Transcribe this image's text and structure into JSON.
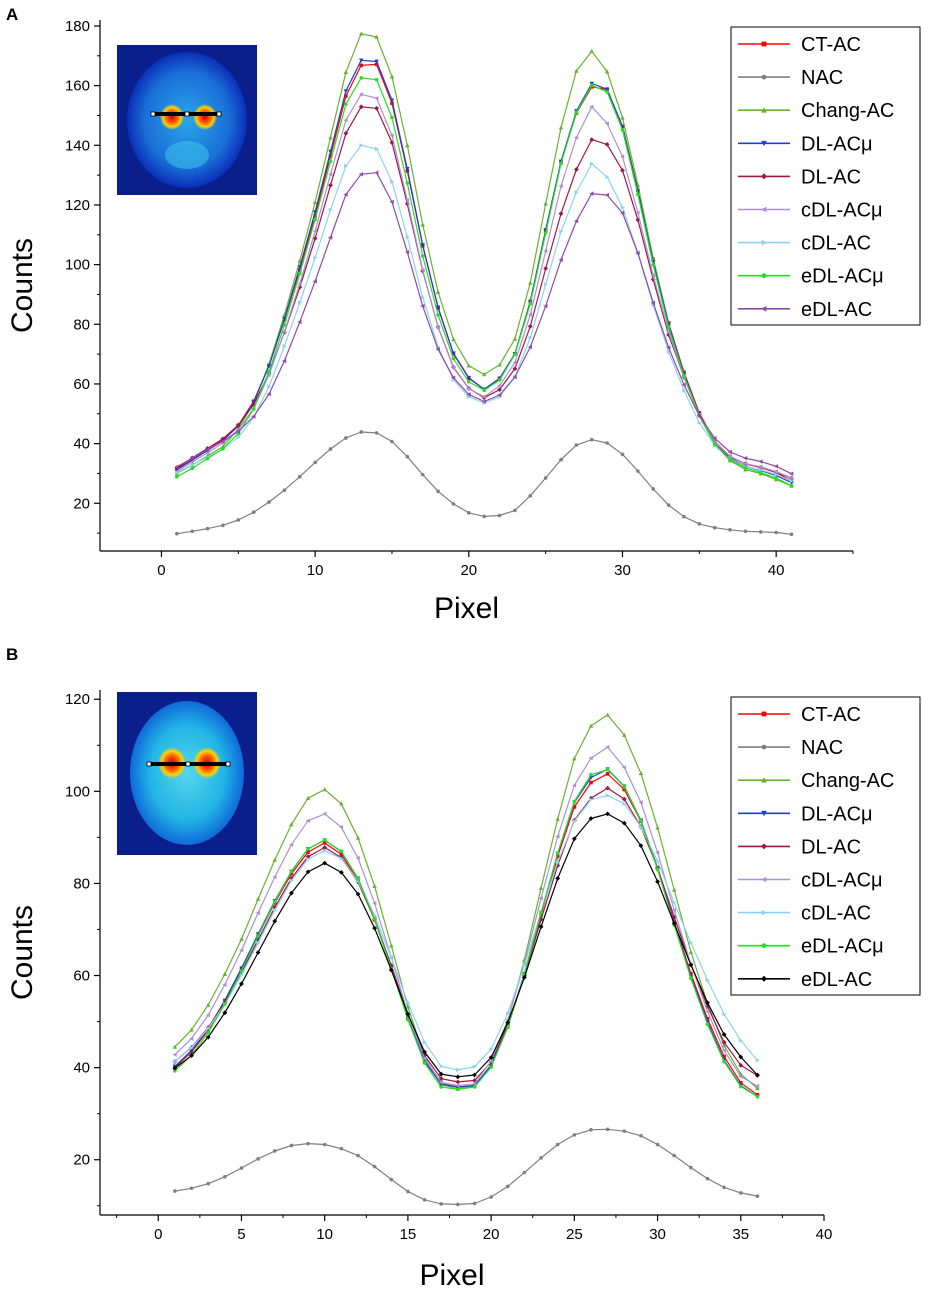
{
  "chart_data": [
    {
      "panel": "A",
      "type": "line",
      "xlabel": "Pixel",
      "ylabel": "Counts",
      "xlim": [
        -4,
        45
      ],
      "ylim": [
        4,
        182
      ],
      "xticks": [
        "0",
        "10",
        "20",
        "30",
        "40"
      ],
      "yticks": [
        "20",
        "40",
        "60",
        "80",
        "100",
        "120",
        "140",
        "160",
        "180"
      ],
      "legend_position": "top-right",
      "inset": "axial brain PET slice with horizontal line profile",
      "x": [
        1,
        2,
        3,
        4,
        5,
        6,
        7,
        8,
        9,
        10,
        11,
        12,
        13,
        14,
        15,
        16,
        17,
        18,
        19,
        20,
        21,
        22,
        23,
        24,
        25,
        26,
        27,
        28,
        29,
        30,
        31,
        32,
        33,
        34,
        35,
        36,
        37,
        38,
        39,
        40,
        41
      ],
      "series": [
        {
          "name": "CT-AC",
          "color": "#ff0000",
          "marker": "square",
          "values": [
            31.5,
            34.6,
            37.9,
            41.2,
            46.1,
            54.2,
            66.2,
            81.5,
            98.3,
            116.3,
            136.4,
            156.5,
            166.8,
            167.1,
            154.1,
            131.4,
            106.3,
            85.5,
            70.1,
            61.9,
            58.2,
            61.9,
            70.1,
            87.7,
            111.6,
            134.3,
            150.8,
            159.6,
            158.7,
            146.4,
            125.0,
            101.8,
            80.5,
            63.9,
            50.3,
            40.7,
            35.7,
            33.2,
            32.0,
            30.3,
            27.5
          ]
        },
        {
          "name": "NAC",
          "color": "#7f7f7f",
          "marker": "circle",
          "values": [
            9.8,
            10.6,
            11.5,
            12.6,
            14.4,
            17.0,
            20.4,
            24.4,
            28.9,
            33.7,
            38.2,
            41.9,
            43.9,
            43.6,
            40.7,
            35.6,
            29.6,
            24.0,
            19.8,
            16.8,
            15.6,
            15.9,
            17.6,
            22.5,
            28.5,
            34.6,
            39.5,
            41.3,
            40.2,
            36.4,
            30.8,
            24.8,
            19.4,
            15.5,
            13.1,
            11.8,
            11.1,
            10.6,
            10.4,
            10.2,
            9.6
          ]
        },
        {
          "name": "Chang-AC",
          "color": "#66b32e",
          "marker": "triangle-up",
          "values": [
            30.0,
            32.8,
            35.9,
            39.0,
            45.0,
            53.6,
            66.7,
            83.1,
            101.3,
            120.9,
            142.6,
            164.5,
            177.4,
            176.3,
            163.0,
            140.0,
            113.4,
            90.8,
            75.0,
            66.1,
            63.2,
            66.4,
            75.1,
            93.9,
            120.4,
            145.9,
            164.9,
            171.5,
            164.7,
            149.2,
            126.7,
            102.1,
            80.3,
            63.2,
            49.3,
            39.7,
            34.3,
            31.3,
            29.9,
            28.0,
            25.8
          ]
        },
        {
          "name": "DL-ACμ",
          "color": "#1b3fd6",
          "marker": "triangle-down",
          "values": [
            31.2,
            34.4,
            37.7,
            41.0,
            45.9,
            53.9,
            66.0,
            81.8,
            99.2,
            117.6,
            137.9,
            158.2,
            168.5,
            168.1,
            155.1,
            132.1,
            106.6,
            85.7,
            70.3,
            62.1,
            58.2,
            61.8,
            70.1,
            87.5,
            111.6,
            134.6,
            151.5,
            160.7,
            158.8,
            146.2,
            124.5,
            100.9,
            79.9,
            63.2,
            49.9,
            40.3,
            35.1,
            32.4,
            31.0,
            29.3,
            26.9
          ]
        },
        {
          "name": "DL-AC",
          "color": "#9e1747",
          "marker": "diamond",
          "values": [
            31.8,
            35.2,
            38.4,
            41.6,
            46.2,
            53.1,
            63.6,
            77.3,
            92.4,
            108.8,
            126.6,
            144.0,
            152.9,
            152.4,
            140.9,
            120.4,
            97.9,
            79.1,
            65.6,
            58.5,
            55.4,
            58.1,
            65.1,
            79.3,
            98.7,
            117.1,
            131.9,
            141.9,
            140.3,
            131.6,
            115.0,
            95.0,
            76.5,
            62.3,
            49.6,
            40.4,
            35.5,
            33.3,
            32.0,
            30.4,
            28.4
          ]
        },
        {
          "name": "cDL-ACμ",
          "color": "#b08fd4",
          "marker": "triangle-left",
          "values": [
            30.6,
            33.8,
            36.9,
            40.2,
            44.7,
            51.8,
            63.0,
            77.5,
            93.6,
            111.2,
            130.3,
            148.4,
            157.1,
            155.8,
            143.3,
            121.6,
            98.2,
            79.0,
            65.4,
            58.4,
            55.7,
            59.4,
            67.2,
            83.2,
            104.6,
            126.3,
            142.6,
            152.9,
            147.3,
            136.2,
            117.4,
            96.4,
            77.5,
            62.3,
            49.6,
            40.5,
            35.7,
            33.3,
            32.2,
            30.6,
            28.5
          ]
        },
        {
          "name": "cDL-AC",
          "color": "#8dd1f5",
          "marker": "triangle-right",
          "values": [
            30.2,
            32.9,
            35.5,
            38.1,
            42.1,
            48.8,
            59.1,
            72.7,
            87.3,
            102.3,
            118.4,
            133.1,
            140.0,
            138.8,
            127.8,
            109.3,
            89.0,
            72.4,
            61.4,
            55.7,
            53.6,
            55.7,
            62.4,
            75.5,
            93.4,
            111.1,
            124.2,
            133.8,
            129.4,
            119.2,
            103.8,
            86.5,
            70.8,
            57.8,
            47.0,
            39.4,
            34.8,
            32.3,
            31.2,
            29.6,
            27.5
          ]
        },
        {
          "name": "eDL-ACμ",
          "color": "#22e022",
          "marker": "circle",
          "values": [
            28.9,
            31.7,
            35.0,
            38.3,
            43.4,
            51.6,
            64.1,
            79.8,
            97.0,
            115.1,
            134.6,
            153.8,
            162.6,
            162.0,
            149.3,
            127.3,
            102.9,
            83.1,
            68.5,
            60.7,
            57.9,
            61.3,
            69.9,
            86.9,
            110.6,
            133.9,
            151.0,
            160.1,
            157.9,
            145.2,
            123.5,
            99.9,
            79.0,
            62.6,
            49.5,
            39.9,
            34.6,
            31.9,
            30.3,
            28.4,
            25.9
          ]
        },
        {
          "name": "eDL-AC",
          "color": "#8c4ca8",
          "marker": "triangle-left",
          "values": [
            32.2,
            35.1,
            38.0,
            40.8,
            44.1,
            49.1,
            56.6,
            67.7,
            80.8,
            94.4,
            109.1,
            123.5,
            130.3,
            130.8,
            121.0,
            104.2,
            86.1,
            71.6,
            62.1,
            56.5,
            54.1,
            56.3,
            62.3,
            72.4,
            86.1,
            101.6,
            114.6,
            123.8,
            123.3,
            117.3,
            103.9,
            87.2,
            72.2,
            59.7,
            49.3,
            41.8,
            37.2,
            35.1,
            34.0,
            32.4,
            29.9
          ]
        }
      ]
    },
    {
      "panel": "B",
      "type": "line",
      "xlabel": "Pixel",
      "ylabel": "Counts",
      "xlim": [
        -3.5,
        40
      ],
      "ylim": [
        8,
        122
      ],
      "xticks": [
        "0",
        "5",
        "10",
        "15",
        "20",
        "25",
        "30",
        "35",
        "40"
      ],
      "yticks": [
        "20",
        "40",
        "60",
        "80",
        "100",
        "120"
      ],
      "legend_position": "top-right",
      "inset": "axial brain PET slice with horizontal line profile",
      "x": [
        1,
        2,
        3,
        4,
        5,
        6,
        7,
        8,
        9,
        10,
        11,
        12,
        13,
        14,
        15,
        16,
        17,
        18,
        19,
        20,
        21,
        22,
        23,
        24,
        25,
        26,
        27,
        28,
        29,
        30,
        31,
        32,
        33,
        34,
        35,
        36
      ],
      "series": [
        {
          "name": "CT-AC",
          "color": "#ff0000",
          "marker": "square",
          "values": [
            40.0,
            43.4,
            48.1,
            54.2,
            61.2,
            68.6,
            75.8,
            82.1,
            86.8,
            88.8,
            86.3,
            80.7,
            72.1,
            61.6,
            50.6,
            41.4,
            36.5,
            35.8,
            36.1,
            40.4,
            48.8,
            60.1,
            73.2,
            85.9,
            96.6,
            101.9,
            103.8,
            100.4,
            93.5,
            83.4,
            71.6,
            60.4,
            50.6,
            42.4,
            36.7,
            34.1
          ]
        },
        {
          "name": "NAC",
          "color": "#7f7f7f",
          "marker": "circle",
          "values": [
            13.2,
            13.8,
            14.8,
            16.3,
            18.2,
            20.2,
            21.9,
            23.1,
            23.5,
            23.3,
            22.4,
            20.9,
            18.5,
            15.7,
            13.1,
            11.3,
            10.4,
            10.3,
            10.5,
            11.9,
            14.2,
            17.2,
            20.4,
            23.3,
            25.4,
            26.5,
            26.6,
            26.2,
            25.2,
            23.3,
            20.9,
            18.3,
            15.9,
            14.0,
            12.8,
            12.1
          ]
        },
        {
          "name": "Chang-AC",
          "color": "#66b32e",
          "marker": "triangle-up",
          "values": [
            44.5,
            48.2,
            53.6,
            60.3,
            67.9,
            76.6,
            85.1,
            92.8,
            98.5,
            100.4,
            97.3,
            89.9,
            79.4,
            66.5,
            53.2,
            42.3,
            36.3,
            35.4,
            36.0,
            40.6,
            50.1,
            63.4,
            79.0,
            94.0,
            107.1,
            114.2,
            116.6,
            112.2,
            103.9,
            92.1,
            78.6,
            65.1,
            53.9,
            44.8,
            38.6,
            35.5
          ]
        },
        {
          "name": "DL-ACμ",
          "color": "#1b3fd6",
          "marker": "triangle-down",
          "values": [
            40.3,
            43.7,
            48.5,
            54.6,
            61.6,
            69.0,
            76.2,
            82.6,
            87.5,
            89.4,
            86.9,
            81.1,
            72.4,
            61.8,
            50.7,
            41.5,
            36.4,
            35.8,
            36.1,
            40.5,
            49.0,
            60.4,
            73.6,
            86.5,
            97.6,
            103.0,
            104.8,
            101.1,
            93.7,
            83.3,
            71.3,
            59.8,
            49.9,
            41.6,
            36.1,
            33.7
          ]
        },
        {
          "name": "DL-AC",
          "color": "#9e1747",
          "marker": "diamond",
          "values": [
            41.3,
            44.4,
            48.7,
            54.2,
            60.7,
            67.7,
            74.8,
            81.1,
            85.8,
            87.8,
            85.6,
            80.3,
            72.2,
            62.2,
            51.6,
            42.6,
            37.6,
            36.9,
            37.2,
            41.2,
            49.3,
            60.1,
            72.2,
            83.9,
            93.7,
            98.5,
            100.7,
            98.3,
            92.3,
            83.3,
            72.7,
            62.4,
            53.3,
            45.5,
            40.5,
            38.3
          ]
        },
        {
          "name": "cDL-ACμ",
          "color": "#b08fd4",
          "marker": "triangle-left",
          "values": [
            42.8,
            46.3,
            51.4,
            58.0,
            65.5,
            73.6,
            81.4,
            88.4,
            93.6,
            95.1,
            92.2,
            85.5,
            75.7,
            63.9,
            51.8,
            42.0,
            36.8,
            36.1,
            36.5,
            41.4,
            50.4,
            62.6,
            76.8,
            90.2,
            101.3,
            107.2,
            109.6,
            105.2,
            97.6,
            86.7,
            74.2,
            62.5,
            52.2,
            43.7,
            38.1,
            36.0
          ]
        },
        {
          "name": "cDL-AC",
          "color": "#8dd1f5",
          "marker": "triangle-right",
          "values": [
            41.3,
            44.3,
            48.5,
            53.8,
            60.1,
            67.1,
            74.2,
            80.6,
            85.3,
            87.1,
            85.4,
            80.5,
            73.1,
            63.9,
            54.1,
            45.5,
            40.3,
            39.5,
            40.2,
            44.0,
            51.8,
            62.2,
            73.8,
            84.6,
            93.5,
            98.2,
            99.1,
            97.3,
            92.3,
            84.8,
            75.8,
            67.1,
            59.0,
            51.6,
            45.9,
            41.6
          ]
        },
        {
          "name": "eDL-ACμ",
          "color": "#22e022",
          "marker": "circle",
          "values": [
            39.3,
            42.7,
            47.6,
            53.8,
            61.0,
            68.6,
            76.0,
            82.6,
            87.5,
            89.4,
            87.0,
            81.0,
            72.3,
            61.5,
            50.4,
            41.0,
            35.8,
            35.3,
            35.8,
            40.1,
            48.8,
            60.3,
            73.6,
            86.6,
            97.8,
            103.6,
            104.7,
            101.0,
            93.6,
            83.0,
            71.0,
            59.4,
            49.4,
            41.3,
            35.9,
            33.7
          ]
        },
        {
          "name": "eDL-AC",
          "color": "#000000",
          "marker": "diamond",
          "values": [
            39.9,
            42.6,
            46.6,
            51.9,
            58.2,
            65.0,
            71.8,
            77.9,
            82.5,
            84.4,
            82.4,
            77.7,
            70.3,
            61.2,
            51.6,
            43.4,
            38.6,
            38.0,
            38.4,
            42.2,
            49.8,
            59.6,
            70.6,
            81.1,
            89.7,
            94.1,
            95.1,
            93.1,
            88.2,
            80.4,
            71.3,
            62.3,
            54.1,
            47.2,
            42.3,
            38.4
          ]
        }
      ]
    }
  ]
}
